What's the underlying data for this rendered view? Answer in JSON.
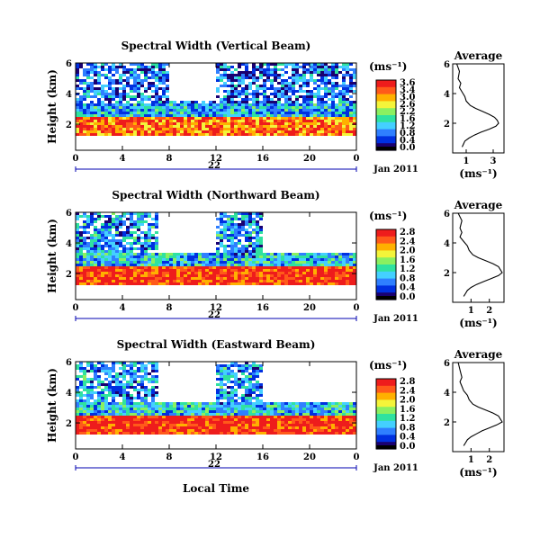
{
  "figure": {
    "xlabel": "Local Time",
    "date_label": "Jan 2011",
    "colors": {
      "palette": [
        "#1a0070",
        "#0030e0",
        "#2f7fff",
        "#44d0ff",
        "#2fe2a0",
        "#8bf060",
        "#f4f43a",
        "#ffb000",
        "#ff5a1a",
        "#ee1c1c"
      ],
      "line": "#000000",
      "background": "#ffffff"
    }
  },
  "chart_data": [
    {
      "type": "heatmap",
      "title": "Spectral Width (Vertical Beam)",
      "ylabel": "Height (km)",
      "x_ticks": [
        "0",
        "4",
        "8",
        "12",
        "16",
        "20",
        "0"
      ],
      "x_day_label": "22",
      "y_ticks": [
        "6",
        "4",
        "2"
      ],
      "xlim": [
        0,
        24
      ],
      "ylim": [
        0.3,
        6
      ],
      "colorbar": {
        "unit": "(ms⁻¹)",
        "ticks": [
          "3.6",
          "3.4",
          "3.0",
          "2.6",
          "2.2",
          "1.6",
          "1.2",
          "0.8",
          "0.4",
          "0.0"
        ],
        "range": [
          0,
          3.6
        ]
      },
      "features": [
        {
          "x": [
            0,
            24
          ],
          "y": [
            1.2,
            2.5
          ],
          "value": 3.0
        },
        {
          "x": [
            0,
            24
          ],
          "y": [
            2.5,
            3.3
          ],
          "value": 1.2
        },
        {
          "x": [
            0,
            24
          ],
          "y": [
            3.3,
            6.0
          ],
          "value": 0.8
        },
        {
          "x": [
            8,
            12
          ],
          "y": [
            3.5,
            6.0
          ],
          "value": null
        }
      ],
      "average_profile": {
        "title": "Average",
        "xlabel": "(ms⁻¹)",
        "x_ticks": [
          "1",
          "3"
        ],
        "y_ticks": [
          "6",
          "4",
          "2"
        ],
        "xlim": [
          0,
          3.8
        ],
        "ylim": [
          0,
          6
        ],
        "height": [
          6.0,
          5.5,
          5.0,
          4.7,
          4.4,
          4.1,
          3.8,
          3.5,
          3.2,
          3.0,
          2.8,
          2.6,
          2.4,
          2.2,
          2.0,
          1.8,
          1.6,
          1.4,
          1.2,
          1.0,
          0.8,
          0.6,
          0.4
        ],
        "width": [
          0.3,
          0.5,
          0.4,
          0.6,
          0.5,
          0.7,
          0.9,
          1.0,
          1.3,
          1.7,
          2.2,
          2.7,
          3.1,
          3.3,
          3.4,
          3.2,
          2.7,
          2.1,
          1.6,
          1.2,
          0.9,
          0.8,
          0.7
        ]
      }
    },
    {
      "type": "heatmap",
      "title": "Spectral Width (Northward Beam)",
      "ylabel": "Height (km)",
      "x_ticks": [
        "0",
        "4",
        "8",
        "12",
        "16",
        "20",
        "0"
      ],
      "x_day_label": "22",
      "y_ticks": [
        "6",
        "4",
        "2"
      ],
      "xlim": [
        0,
        24
      ],
      "ylim": [
        0.3,
        6
      ],
      "colorbar": {
        "unit": "(ms⁻¹)",
        "ticks": [
          "2.8",
          "2.4",
          "2.0",
          "1.6",
          "1.2",
          "0.8",
          "0.4",
          "0.0"
        ],
        "range": [
          0,
          2.8
        ]
      },
      "features": [
        {
          "x": [
            0,
            24
          ],
          "y": [
            1.2,
            2.5
          ],
          "value": 2.6
        },
        {
          "x": [
            0,
            24
          ],
          "y": [
            2.5,
            3.3
          ],
          "value": 1.0
        },
        {
          "x": [
            0,
            7
          ],
          "y": [
            3.3,
            6.0
          ],
          "value": 0.8
        },
        {
          "x": [
            12,
            16
          ],
          "y": [
            3.0,
            6.0
          ],
          "value": 0.8
        }
      ],
      "average_profile": {
        "title": "Average",
        "xlabel": "(ms⁻¹)",
        "x_ticks": [
          "1",
          "2"
        ],
        "y_ticks": [
          "6",
          "4",
          "2"
        ],
        "xlim": [
          0,
          2.8
        ],
        "ylim": [
          0,
          6
        ],
        "height": [
          6.0,
          5.5,
          5.0,
          4.7,
          4.4,
          4.1,
          3.8,
          3.5,
          3.2,
          3.0,
          2.8,
          2.6,
          2.4,
          2.2,
          2.0,
          1.8,
          1.6,
          1.4,
          1.2,
          1.0,
          0.8,
          0.6,
          0.4
        ],
        "width": [
          0.3,
          0.5,
          0.4,
          0.5,
          0.4,
          0.6,
          0.8,
          0.9,
          1.1,
          1.4,
          1.8,
          2.2,
          2.5,
          2.6,
          2.7,
          2.5,
          2.1,
          1.7,
          1.3,
          1.0,
          0.8,
          0.7,
          0.6
        ]
      }
    },
    {
      "type": "heatmap",
      "title": "Spectral Width (Eastward Beam)",
      "ylabel": "Height (km)",
      "x_ticks": [
        "0",
        "4",
        "8",
        "12",
        "16",
        "20",
        "0"
      ],
      "x_day_label": "22",
      "y_ticks": [
        "6",
        "4",
        "2"
      ],
      "xlim": [
        0,
        24
      ],
      "ylim": [
        0.3,
        6
      ],
      "colorbar": {
        "unit": "(ms⁻¹)",
        "ticks": [
          "2.8",
          "2.4",
          "2.0",
          "1.6",
          "1.2",
          "0.8",
          "0.4",
          "0.0"
        ],
        "range": [
          0,
          2.8
        ]
      },
      "features": [
        {
          "x": [
            0,
            24
          ],
          "y": [
            1.2,
            2.4
          ],
          "value": 2.6
        },
        {
          "x": [
            0,
            24
          ],
          "y": [
            2.4,
            3.3
          ],
          "value": 1.0
        },
        {
          "x": [
            0,
            7
          ],
          "y": [
            3.3,
            6.0
          ],
          "value": 0.8
        },
        {
          "x": [
            12,
            16
          ],
          "y": [
            3.0,
            6.0
          ],
          "value": 0.8
        }
      ],
      "average_profile": {
        "title": "Average",
        "xlabel": "(ms⁻¹)",
        "x_ticks": [
          "1",
          "2"
        ],
        "y_ticks": [
          "6",
          "4",
          "2"
        ],
        "xlim": [
          0,
          2.8
        ],
        "ylim": [
          0,
          6
        ],
        "height": [
          6.0,
          5.5,
          5.0,
          4.7,
          4.4,
          4.1,
          3.8,
          3.5,
          3.2,
          3.0,
          2.8,
          2.6,
          2.4,
          2.2,
          2.0,
          1.8,
          1.6,
          1.4,
          1.2,
          1.0,
          0.8,
          0.6,
          0.4
        ],
        "width": [
          0.3,
          0.4,
          0.5,
          0.4,
          0.5,
          0.6,
          0.8,
          0.9,
          1.1,
          1.4,
          1.8,
          2.2,
          2.5,
          2.6,
          2.7,
          2.4,
          2.0,
          1.6,
          1.3,
          1.0,
          0.8,
          0.7,
          0.6
        ]
      }
    }
  ]
}
